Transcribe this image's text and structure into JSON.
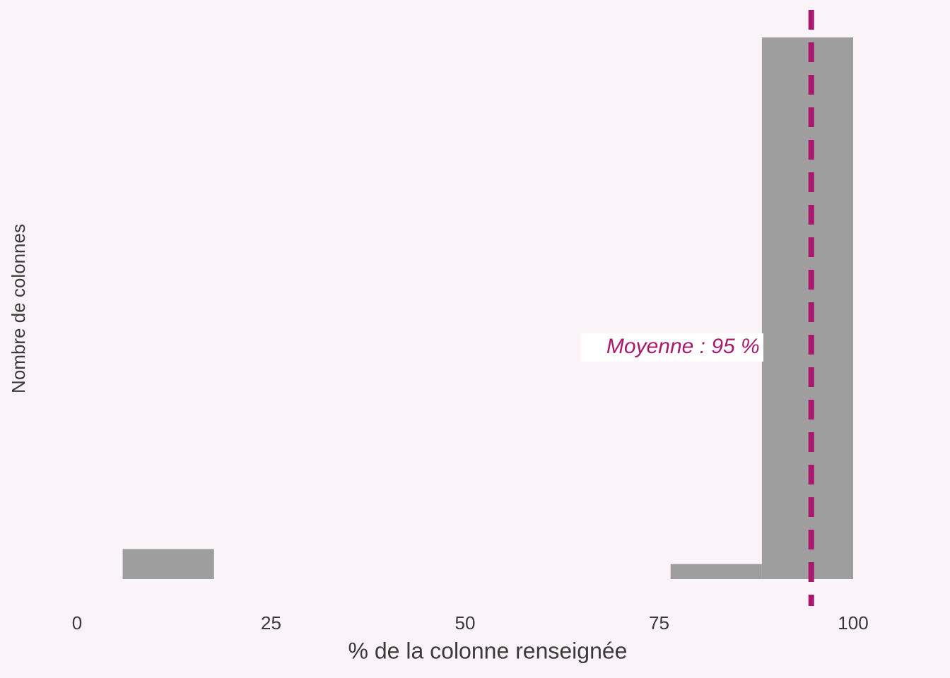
{
  "chart_data": {
    "type": "histogram",
    "x_label": "% de la colonne renseignée",
    "y_label": "Nombre de colonnes",
    "bins": [
      5.88,
      17.65,
      29.41,
      41.18,
      52.94,
      64.71,
      76.47,
      88.24,
      100
    ],
    "values": [
      2,
      0,
      0,
      0,
      0,
      0,
      1,
      36
    ],
    "color": "#9e9e9e",
    "xlim": [
      0,
      100
    ],
    "xticks": [
      0,
      25,
      50,
      75,
      100
    ],
    "ylim": [
      0,
      36
    ],
    "mean": 94.6,
    "mean_label": "Moyenne : 95 %",
    "mean_color": "#a8196e",
    "grid": false
  }
}
